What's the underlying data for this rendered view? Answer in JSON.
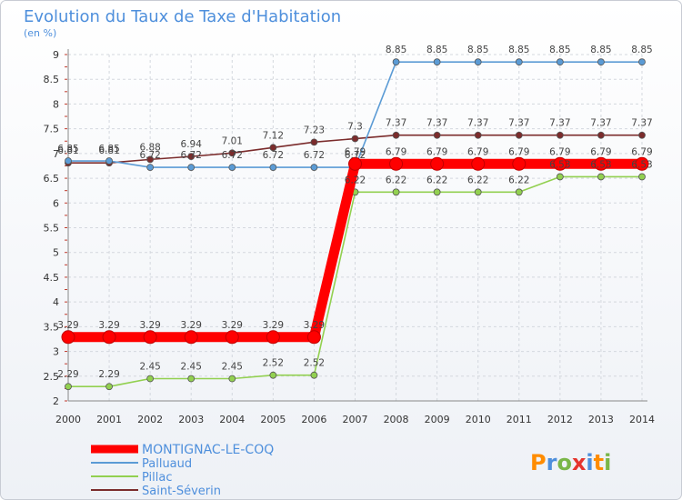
{
  "chart_data": {
    "type": "line",
    "title": "Evolution du Taux de Taxe d'Habitation",
    "subtitle": "(en %)",
    "x": [
      "2000",
      "2001",
      "2002",
      "2003",
      "2004",
      "2005",
      "2006",
      "2007",
      "2008",
      "2009",
      "2010",
      "2011",
      "2012",
      "2013",
      "2014"
    ],
    "ylim": [
      2,
      9
    ],
    "yticks": [
      "2",
      "2.5",
      "3",
      "3.5",
      "4",
      "4.5",
      "5",
      "5.5",
      "6",
      "6.5",
      "7",
      "7.5",
      "8",
      "8.5",
      "9"
    ],
    "grid": true,
    "legend_position": "bottom-left",
    "series": [
      {
        "name": "MONTIGNAC-LE-COQ",
        "color": "#ff0000",
        "values": [
          3.29,
          3.29,
          3.29,
          3.29,
          3.29,
          3.29,
          3.29,
          6.79,
          6.79,
          6.79,
          6.79,
          6.79,
          6.79,
          6.79,
          6.79
        ],
        "labels": [
          "3.29",
          "3.29",
          "3.29",
          "3.29",
          "3.29",
          "3.29",
          "3.29",
          "6.79",
          "6.79",
          "6.79",
          "6.79",
          "6.79",
          "6.79",
          "6.79",
          "6.79"
        ]
      },
      {
        "name": "Palluaud",
        "color": "#5b9bd5",
        "values": [
          6.85,
          6.85,
          6.72,
          6.72,
          6.72,
          6.72,
          6.72,
          6.72,
          8.85,
          8.85,
          8.85,
          8.85,
          8.85,
          8.85,
          8.85
        ],
        "labels": [
          "6.85",
          "6.85",
          "6.72",
          "6.72",
          "6.72",
          "6.72",
          "6.72",
          "6.72",
          "8.85",
          "8.85",
          "8.85",
          "8.85",
          "8.85",
          "8.85",
          "8.85"
        ]
      },
      {
        "name": "Pillac",
        "color": "#92d050",
        "values": [
          2.29,
          2.29,
          2.45,
          2.45,
          2.45,
          2.52,
          2.52,
          6.22,
          6.22,
          6.22,
          6.22,
          6.22,
          6.53,
          6.53,
          6.53
        ],
        "labels": [
          "2.29",
          "2.29",
          "2.45",
          "2.45",
          "2.45",
          "2.52",
          "2.52",
          "6.22",
          "6.22",
          "6.22",
          "6.22",
          "6.22",
          "6.53",
          "6.53",
          "6.53"
        ]
      },
      {
        "name": "Saint-Séverin",
        "color": "#7b2c2c",
        "values": [
          6.81,
          6.81,
          6.88,
          6.94,
          7.01,
          7.12,
          7.23,
          7.3,
          7.37,
          7.37,
          7.37,
          7.37,
          7.37,
          7.37,
          7.37
        ],
        "labels": [
          "6.81",
          "6.81",
          "6.88",
          "6.94",
          "7.01",
          "7.12",
          "7.23",
          "7.3",
          "7.37",
          "7.37",
          "7.37",
          "7.37",
          "7.37",
          "7.37",
          "7.37"
        ]
      }
    ]
  },
  "logo": {
    "text": "Proxiti",
    "letters": [
      "P",
      "r",
      "o",
      "x",
      "i",
      "t",
      "i"
    ],
    "colors": [
      "#ff8c00",
      "#4e8fdc",
      "#7ab648",
      "#e5342d",
      "#4e8fdc",
      "#ff8c00",
      "#7ab648"
    ]
  }
}
